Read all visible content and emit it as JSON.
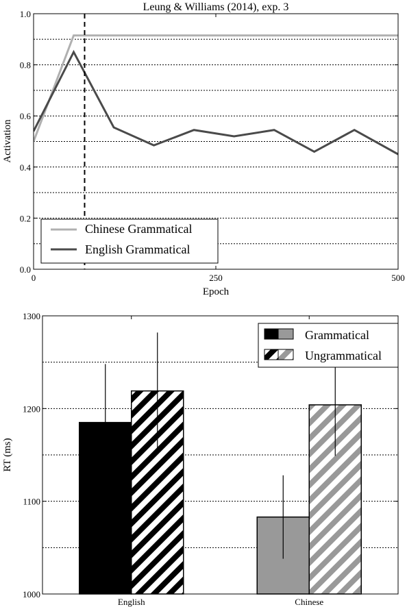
{
  "chart_data": [
    {
      "type": "line",
      "title": "Leung & Williams (2014), exp. 3",
      "xlabel": "Epoch",
      "ylabel": "Activation",
      "xlim": [
        0,
        500
      ],
      "ylim": [
        0.0,
        1.0
      ],
      "xticks": [
        0,
        250,
        500
      ],
      "yticks": [
        0.0,
        0.2,
        0.4,
        0.6,
        0.8,
        1.0
      ],
      "ygrid_minor": [
        0.1,
        0.3,
        0.5,
        0.7,
        0.9
      ],
      "grid": "horizontal dotted",
      "vline": 70,
      "legend_position": "lower-left",
      "series": [
        {
          "name": "Chinese Grammatical",
          "color": "#b0b0b0",
          "x": [
            0,
            55,
            500
          ],
          "y": [
            0.5,
            0.915,
            0.915
          ]
        },
        {
          "name": "English Grammatical",
          "color": "#4a4a4a",
          "x": [
            0,
            55,
            110,
            165,
            220,
            275,
            330,
            385,
            440,
            500
          ],
          "y": [
            0.54,
            0.85,
            0.555,
            0.485,
            0.545,
            0.52,
            0.545,
            0.46,
            0.545,
            0.45
          ]
        }
      ]
    },
    {
      "type": "bar",
      "title": "",
      "xlabel": "",
      "ylabel": "RT (ms)",
      "ylim": [
        1000,
        1300
      ],
      "yticks": [
        1000,
        1100,
        1200,
        1300
      ],
      "ygrid_minor": [
        1050,
        1150,
        1250
      ],
      "grid": "horizontal dotted",
      "categories": [
        "English",
        "Chinese"
      ],
      "legend_position": "top-right",
      "series": [
        {
          "name": "Grammatical",
          "pattern": "solid",
          "colors": [
            "#000000",
            "#999999"
          ],
          "values": [
            1185,
            1083
          ],
          "errors": [
            63,
            45
          ]
        },
        {
          "name": "Ungrammatical",
          "pattern": "hatched",
          "colors": [
            "#000000",
            "#999999"
          ],
          "values": [
            1219,
            1204
          ],
          "errors": [
            63,
            55
          ]
        }
      ]
    }
  ]
}
